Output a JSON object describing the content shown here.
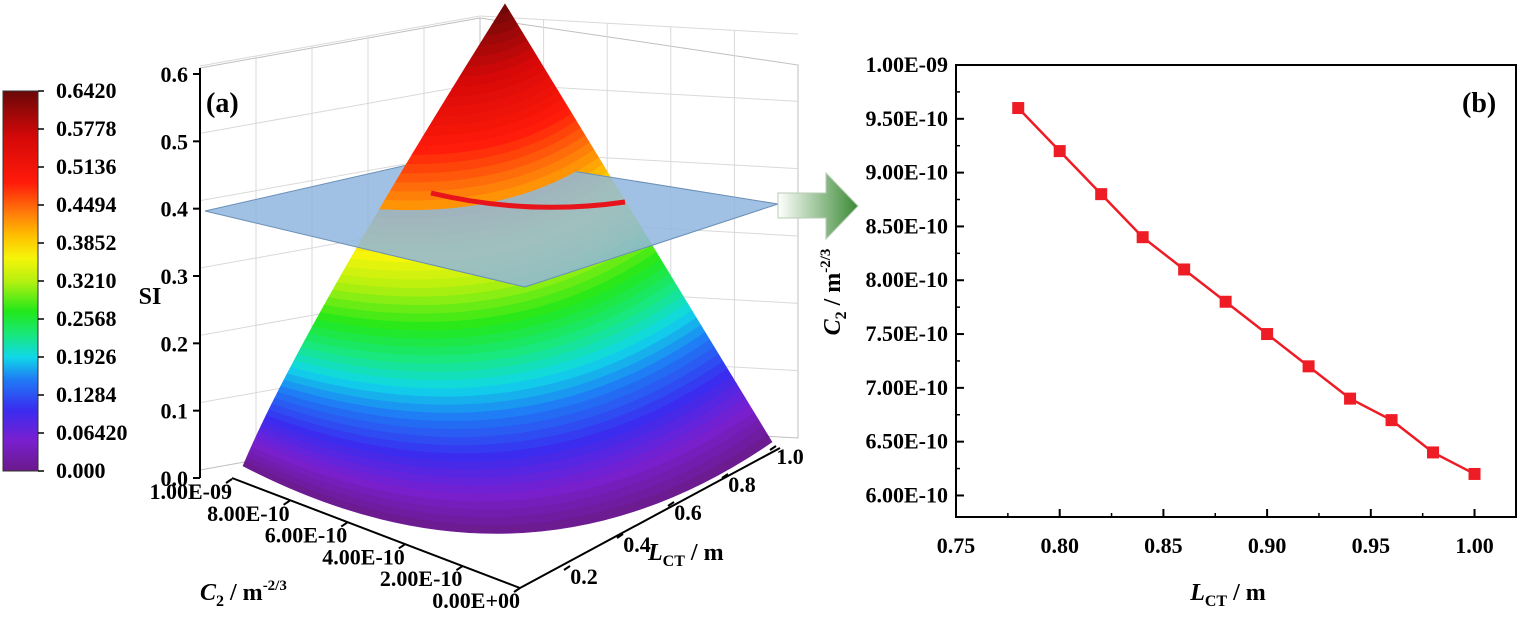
{
  "chart_data": [
    {
      "panel": "(a)",
      "type": "surface3d",
      "zlabel": "SI",
      "xlabel": "C2 / m-2/3",
      "ylabel": "LCT / m",
      "z_ticks": [
        "0.0",
        "0.1",
        "0.2",
        "0.3",
        "0.4",
        "0.5",
        "0.6"
      ],
      "c2_ticks": [
        "1.00E-09",
        "8.00E-10",
        "6.00E-10",
        "4.00E-10",
        "2.00E-10",
        "0.00E+00"
      ],
      "lct_ticks": [
        "0.2",
        "0.4",
        "0.6",
        "0.8",
        "1.0"
      ],
      "zlim": [
        0,
        0.6
      ],
      "threshold_plane": 0.4,
      "colorbar": {
        "ticks": [
          "0.6420",
          "0.5778",
          "0.5136",
          "0.4494",
          "0.3852",
          "0.3210",
          "0.2568",
          "0.1926",
          "0.1284",
          "0.06420",
          "0.000"
        ],
        "range": [
          0,
          0.642
        ]
      },
      "colors": {
        "plane": "#8fb6de",
        "contour": "#e8141b",
        "arrow": "#3a8a34"
      }
    },
    {
      "panel": "(b)",
      "type": "line",
      "xlabel": "LCT / m",
      "ylabel": "C2 / m-2/3",
      "x": [
        0.78,
        0.8,
        0.82,
        0.84,
        0.86,
        0.88,
        0.9,
        0.92,
        0.94,
        0.96,
        0.98,
        1.0
      ],
      "series": [
        {
          "color": "#ee1c25",
          "marker": "square",
          "values": [
            9.6e-10,
            9.2e-10,
            8.8e-10,
            8.4e-10,
            8.1e-10,
            7.8e-10,
            7.5e-10,
            7.2e-10,
            6.9e-10,
            6.7e-10,
            6.4e-10,
            6.2e-10
          ]
        }
      ],
      "xlim": [
        0.75,
        1.02
      ],
      "ylim": [
        5.8e-10,
        1e-09
      ],
      "x_ticks": [
        "0.75",
        "0.80",
        "0.85",
        "0.90",
        "0.95",
        "1.00"
      ],
      "y_ticks": [
        "6.00E-10",
        "6.50E-10",
        "7.00E-10",
        "7.50E-10",
        "8.00E-10",
        "8.50E-10",
        "9.00E-10",
        "9.50E-10",
        "1.00E-09"
      ],
      "grid": false
    }
  ]
}
